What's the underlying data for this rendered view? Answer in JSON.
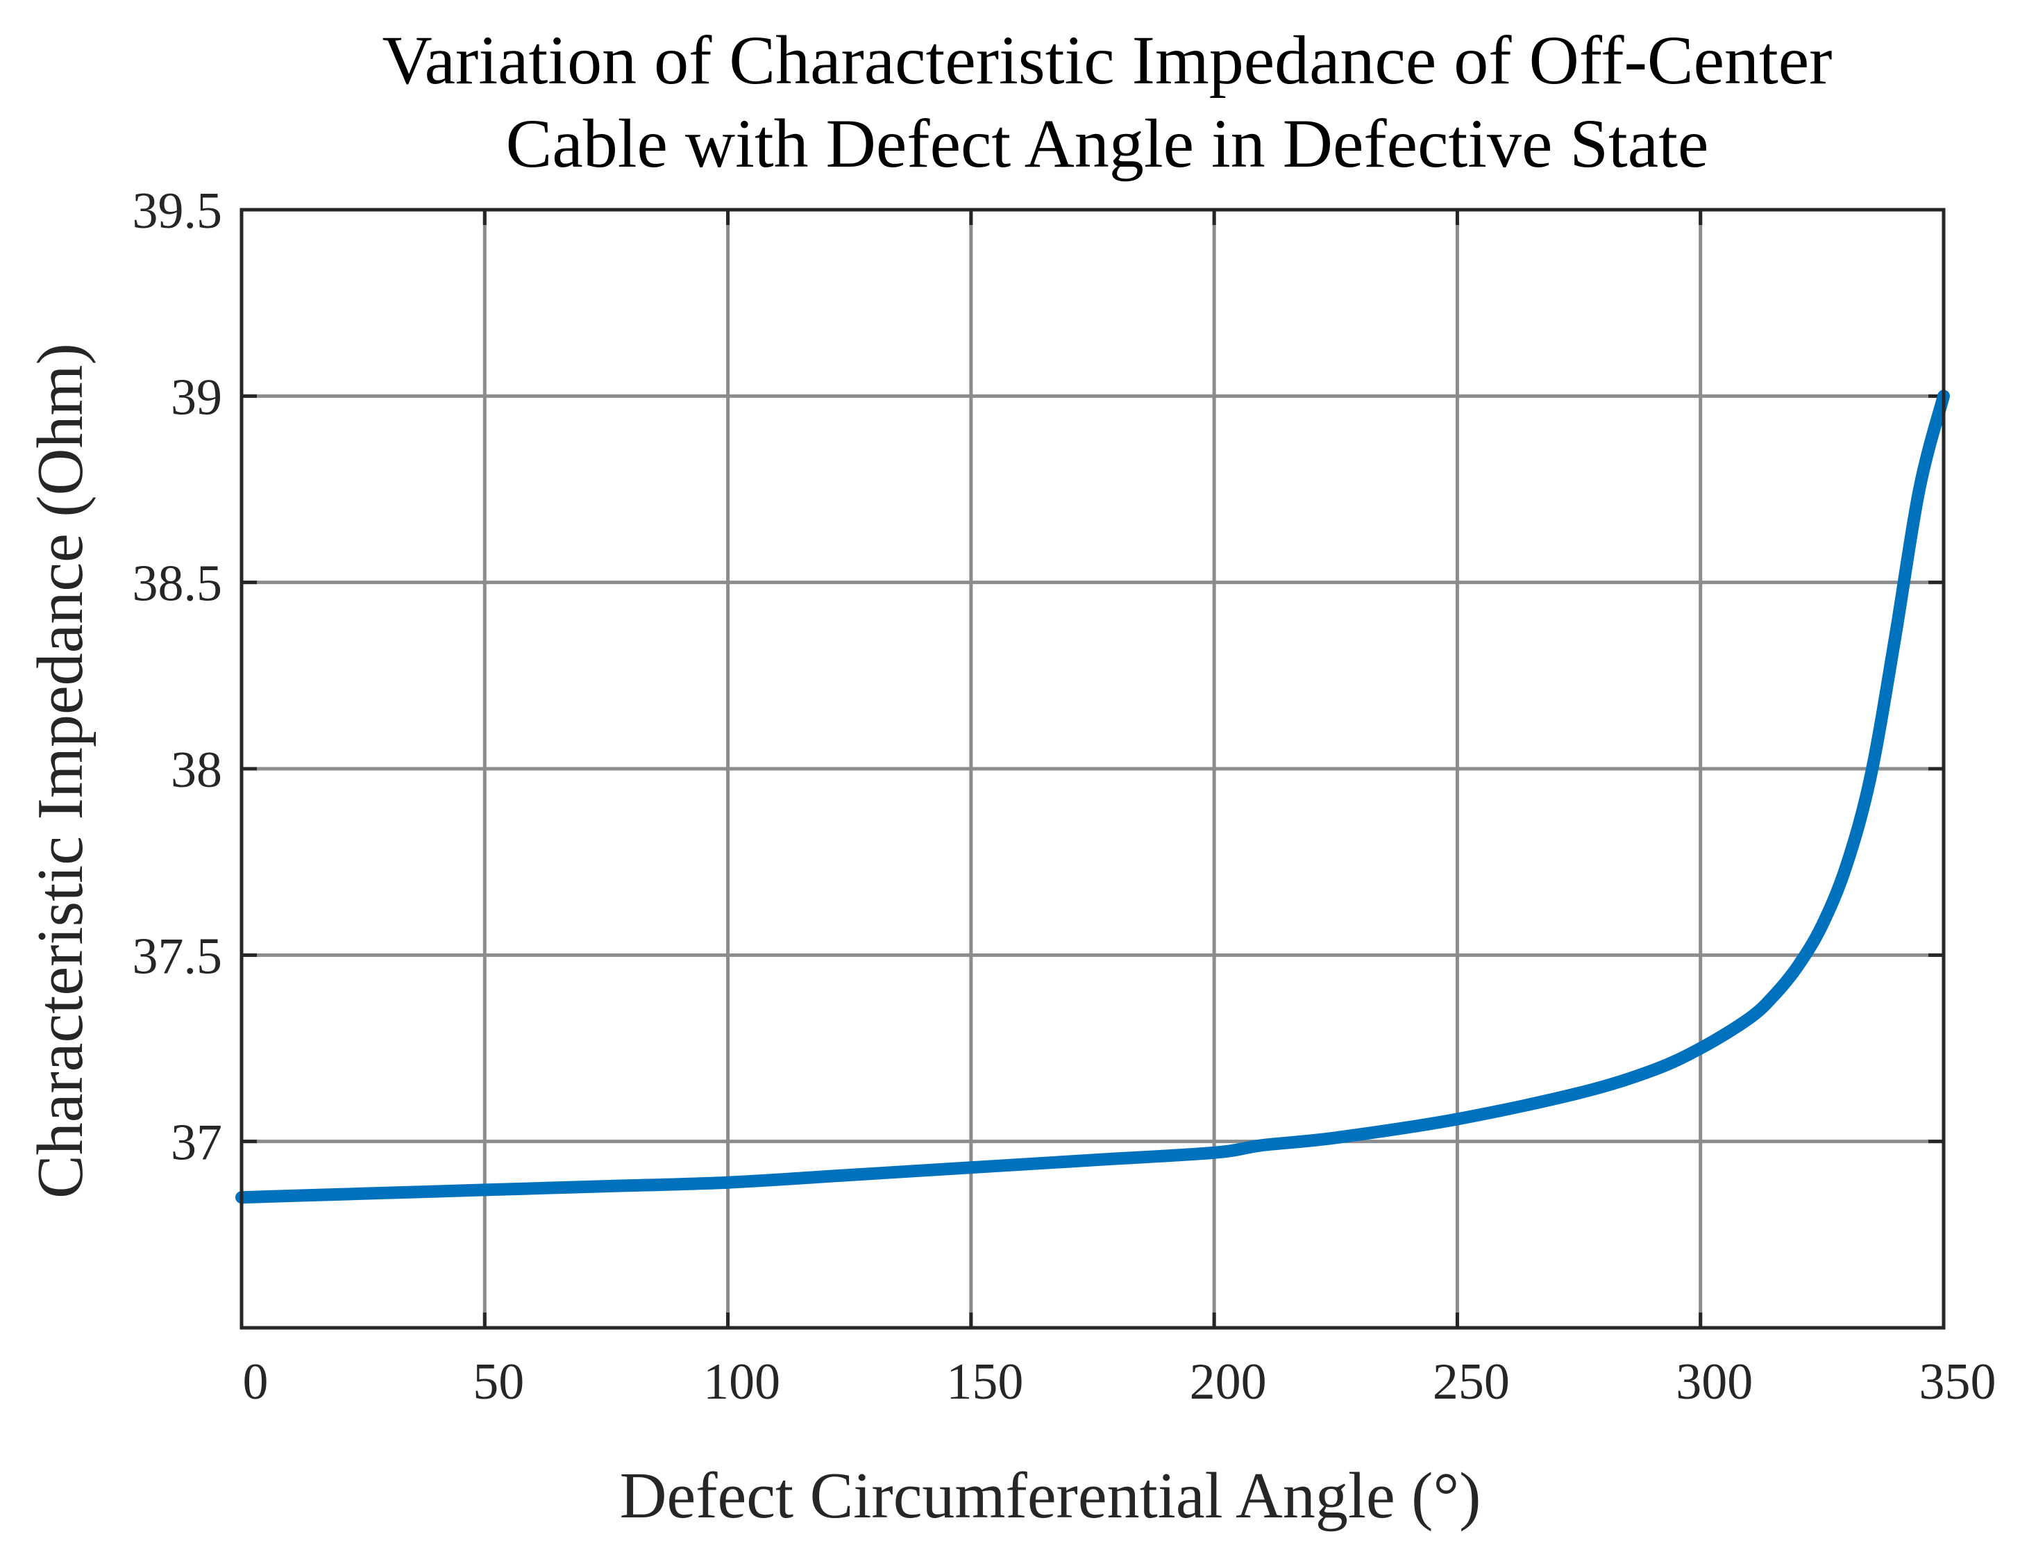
{
  "chart_data": {
    "type": "line",
    "title": [
      "Variation of Characteristic Impedance of Off-Center",
      "Cable with Defect Angle in Defective State"
    ],
    "xlabel": "Defect Circumferential Angle (°)",
    "ylabel": "Characteristic Impedance (Ohm)",
    "xlim": [
      0,
      350
    ],
    "ylim": [
      36.5,
      39.5
    ],
    "xticks": [
      0,
      50,
      100,
      150,
      200,
      250,
      300,
      350
    ],
    "yticks": [
      37,
      37.5,
      38,
      38.5,
      39,
      39.5
    ],
    "xtick_labels": [
      "0",
      "50",
      "100",
      "150",
      "200",
      "250",
      "300",
      "350"
    ],
    "ytick_labels": [
      "37",
      "37.5",
      "38",
      "38.5",
      "39",
      "39.5"
    ],
    "grid": true,
    "colors": {
      "series": "#0072BD",
      "axis": "#262626",
      "grid": "#8c8c8c"
    },
    "series": [
      {
        "name": "Characteristic Impedance",
        "x": [
          0,
          25,
          50,
          75,
          100,
          125,
          150,
          175,
          200,
          210,
          225,
          250,
          275,
          290,
          300,
          310,
          315,
          320,
          325,
          330,
          335,
          340,
          345,
          350
        ],
        "y": [
          36.85,
          36.86,
          36.87,
          36.88,
          36.89,
          36.91,
          36.93,
          36.95,
          36.97,
          36.99,
          37.01,
          37.06,
          37.13,
          37.19,
          37.25,
          37.33,
          37.39,
          37.47,
          37.58,
          37.74,
          37.98,
          38.35,
          38.75,
          39.0
        ]
      }
    ]
  }
}
